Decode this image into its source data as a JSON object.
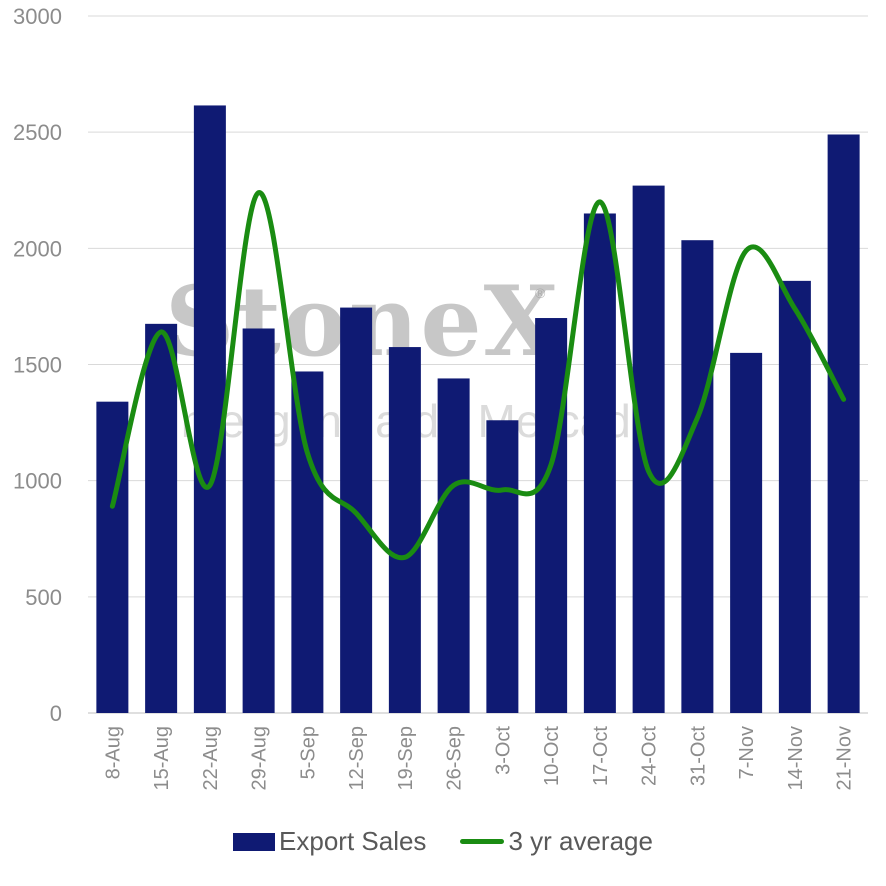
{
  "chart_data": {
    "type": "bar",
    "categories": [
      "8-Aug",
      "15-Aug",
      "22-Aug",
      "29-Aug",
      "5-Sep",
      "12-Sep",
      "19-Sep",
      "26-Sep",
      "3-Oct",
      "10-Oct",
      "17-Oct",
      "24-Oct",
      "31-Oct",
      "7-Nov",
      "14-Nov",
      "21-Nov"
    ],
    "series": [
      {
        "name": "Export Sales",
        "type": "bar",
        "color": "#0f1a73",
        "values": [
          1340,
          1675,
          2615,
          1655,
          1470,
          1745,
          1575,
          1440,
          1260,
          1700,
          2150,
          2270,
          2035,
          1550,
          1860,
          2490
        ]
      },
      {
        "name": "3 yr average",
        "type": "line",
        "smooth": true,
        "color": "#1a8c12",
        "values": [
          890,
          1640,
          980,
          2240,
          1120,
          860,
          670,
          980,
          960,
          1070,
          2200,
          1040,
          1270,
          1990,
          1740,
          1350
        ]
      }
    ],
    "ylim": [
      0,
      3000
    ],
    "yticks": [
      0,
      500,
      1000,
      1500,
      2000,
      2500,
      3000
    ],
    "grid": true,
    "legend": "bottom"
  },
  "watermark": {
    "brand": "StoneX",
    "registered_mark": "®",
    "tagline": "Inteligência de Mercado"
  }
}
